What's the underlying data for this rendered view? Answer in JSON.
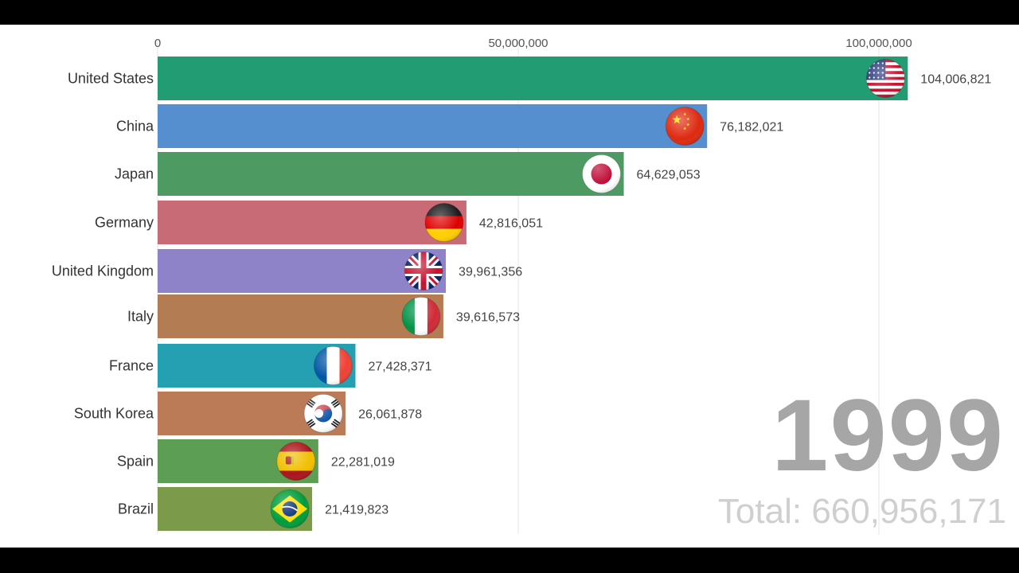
{
  "chart_data": {
    "type": "bar",
    "orientation": "horizontal",
    "title": "",
    "xlabel": "",
    "ylabel": "",
    "xlim": [
      0,
      115000000
    ],
    "grid": true,
    "x_ticks": [
      0,
      50000000,
      100000000
    ],
    "x_tick_labels": [
      "0",
      "50,000,000",
      "100,000,000"
    ],
    "categories": [
      "United States",
      "China",
      "Japan",
      "Germany",
      "United Kingdom",
      "Italy",
      "France",
      "South Korea",
      "Spain",
      "Brazil"
    ],
    "values": [
      104006821,
      76182021,
      64629053,
      42816051,
      39961356,
      39616573,
      27428371,
      26061878,
      22281019,
      21419823
    ],
    "value_labels": [
      "104,006,821",
      "76,182,021",
      "64,629,053",
      "42,816,051",
      "39,961,356",
      "39,616,573",
      "27,428,371",
      "26,061,878",
      "22,281,019",
      "21,419,823"
    ],
    "bar_colors": [
      "#229c72",
      "#568fd0",
      "#4d9a62",
      "#c96a77",
      "#8e82c9",
      "#b47c53",
      "#24a0b2",
      "#bb7b57",
      "#5d9e55",
      "#7b9a4a"
    ],
    "flags": [
      "us-flag-icon",
      "china-flag-icon",
      "japan-flag-icon",
      "germany-flag-icon",
      "uk-flag-icon",
      "italy-flag-icon",
      "france-flag-icon",
      "south-korea-flag-icon",
      "spain-flag-icon",
      "brazil-flag-icon"
    ]
  },
  "year_label": "1999",
  "total_label": "Total: 660,956,171"
}
